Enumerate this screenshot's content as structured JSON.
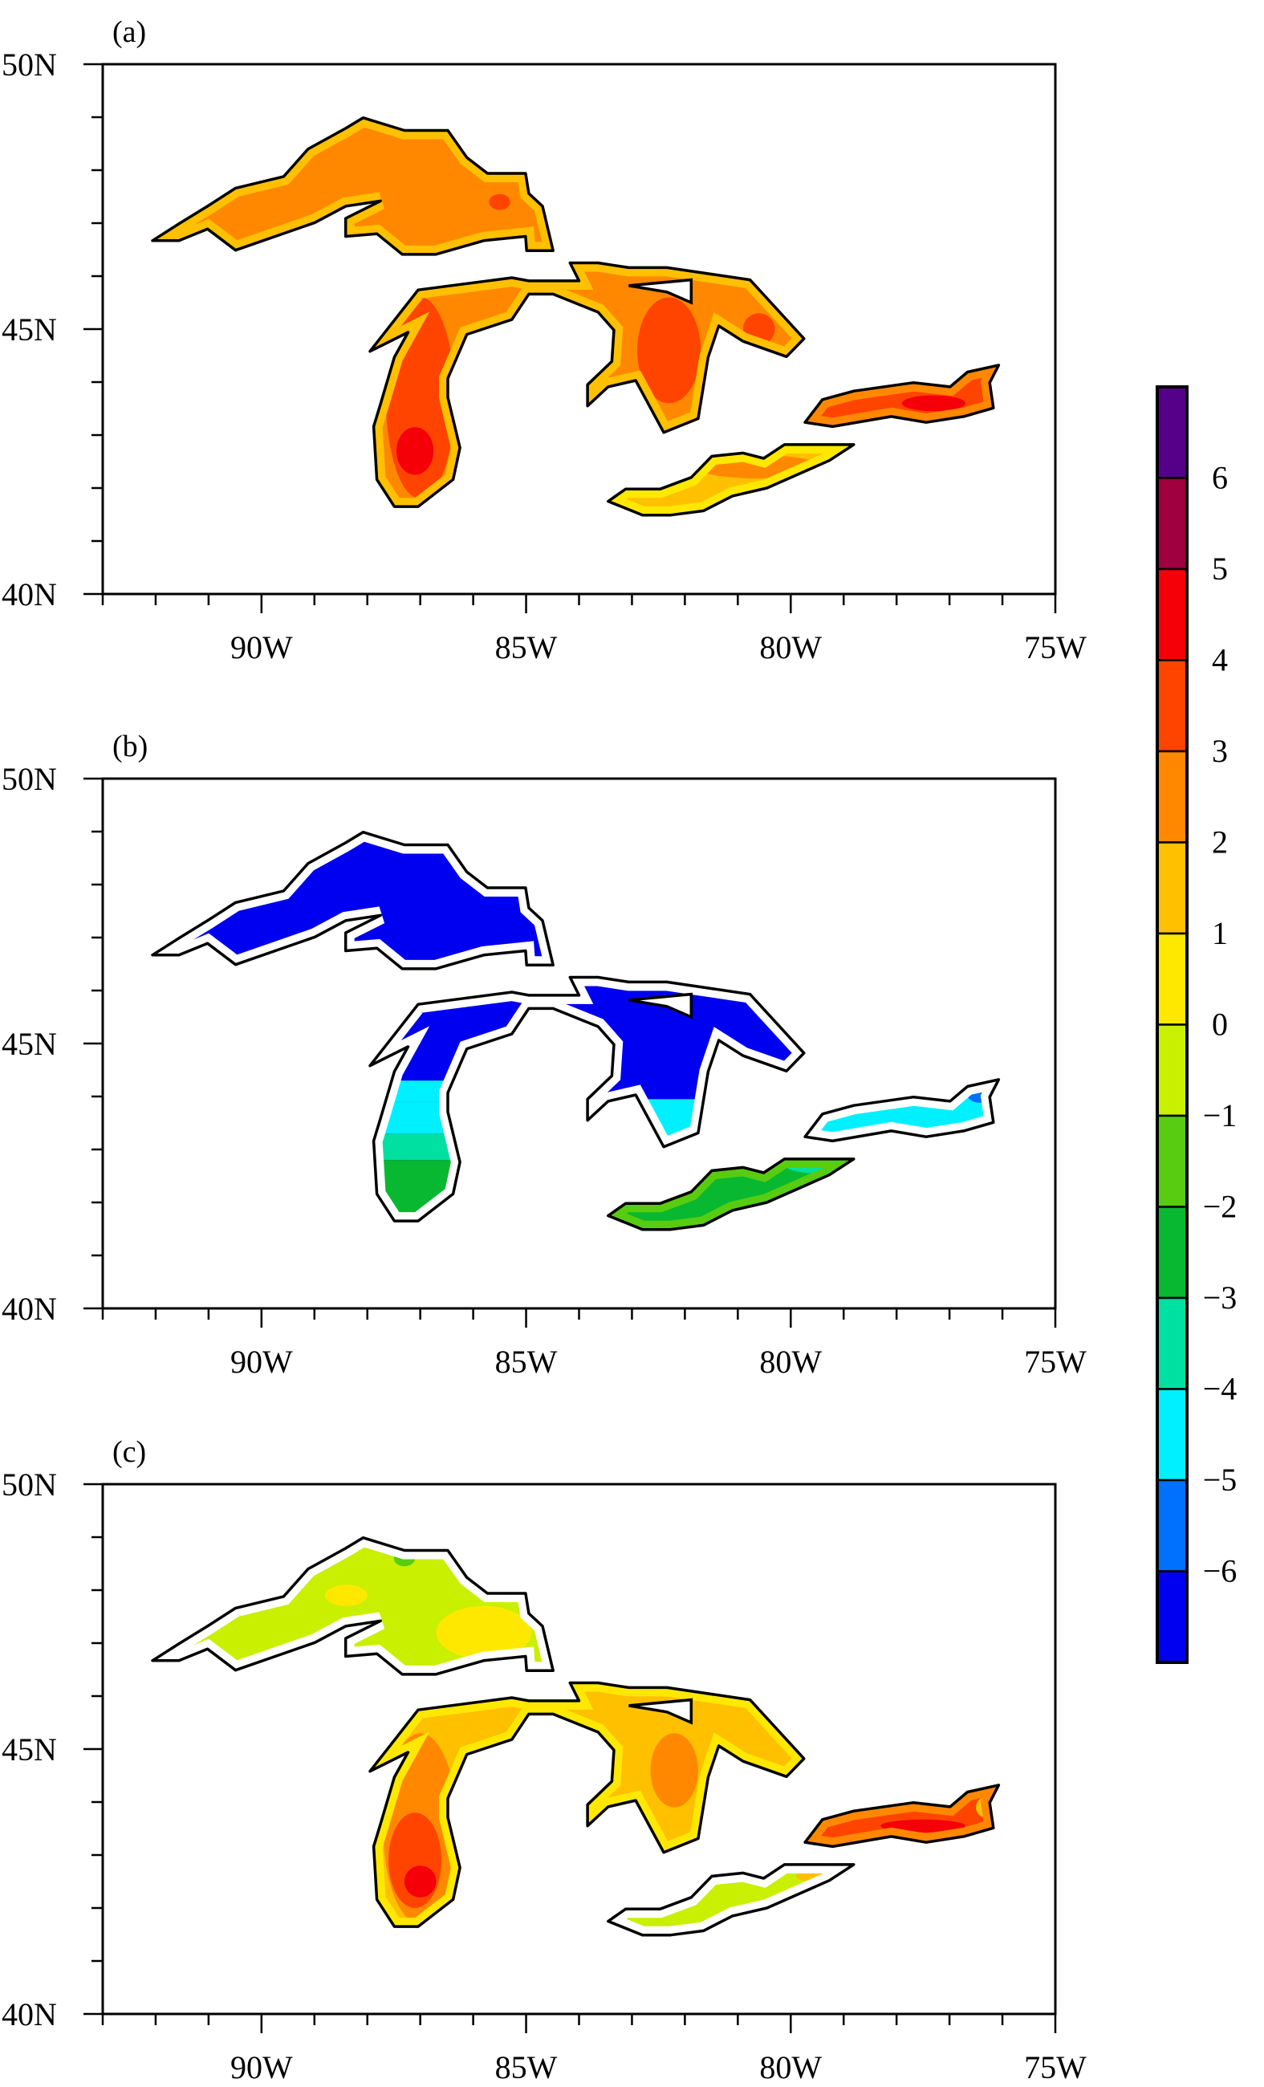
{
  "chart_data": {
    "type": "map",
    "panels": [
      {
        "label": "(a)"
      },
      {
        "label": "(b)"
      },
      {
        "label": "(c)"
      }
    ],
    "lon_range": [
      -93,
      -75
    ],
    "lat_range": [
      40,
      50
    ],
    "x_tick_labels": [
      {
        "lon": -90,
        "text": "90W"
      },
      {
        "lon": -85,
        "text": "85W"
      },
      {
        "lon": -80,
        "text": "80W"
      },
      {
        "lon": -75,
        "text": "75W"
      }
    ],
    "y_tick_labels": [
      {
        "lat": 50,
        "text": "50N"
      },
      {
        "lat": 45,
        "text": "45N"
      },
      {
        "lat": 40,
        "text": "40N"
      }
    ],
    "colorbar": {
      "levels": [
        "6",
        "5",
        "4",
        "3",
        "2",
        "1",
        "0",
        "−1",
        "−2",
        "−3",
        "−4",
        "−5",
        "−6"
      ],
      "colors": [
        "#550088",
        "#a00040",
        "#f50008",
        "#ff4400",
        "#ff8800",
        "#ffc000",
        "#ffe800",
        "#c8f000",
        "#58cc10",
        "#08b830",
        "#00e0a0",
        "#00f0ff",
        "#0070ff",
        "#0000f0"
      ]
    },
    "lakes": {
      "superior": [
        [
          -92.06,
          46.67
        ],
        [
          -91.56,
          46.67
        ],
        [
          -91.02,
          46.89
        ],
        [
          -90.49,
          46.49
        ],
        [
          -88.99,
          47.01
        ],
        [
          -88.41,
          47.32
        ],
        [
          -87.75,
          47.42
        ],
        [
          -88.41,
          47.09
        ],
        [
          -88.41,
          46.75
        ],
        [
          -87.82,
          46.8
        ],
        [
          -87.34,
          46.41
        ],
        [
          -86.71,
          46.41
        ],
        [
          -85.8,
          46.67
        ],
        [
          -85.01,
          46.75
        ],
        [
          -84.99,
          46.48
        ],
        [
          -84.49,
          46.48
        ],
        [
          -84.69,
          47.32
        ],
        [
          -84.95,
          47.56
        ],
        [
          -85.01,
          47.94
        ],
        [
          -85.73,
          47.94
        ],
        [
          -86.12,
          48.24
        ],
        [
          -86.48,
          48.75
        ],
        [
          -87.3,
          48.75
        ],
        [
          -88.08,
          48.99
        ],
        [
          -88.41,
          48.79
        ],
        [
          -89.12,
          48.4
        ],
        [
          -89.58,
          47.88
        ],
        [
          -90.49,
          47.66
        ],
        [
          -91.02,
          47.32
        ],
        [
          -91.56,
          46.99
        ]
      ],
      "michigan_huron": [
        [
          -87.95,
          44.58
        ],
        [
          -87.04,
          45.74
        ],
        [
          -85.27,
          45.97
        ],
        [
          -84.95,
          45.91
        ],
        [
          -84.0,
          45.91
        ],
        [
          -84.17,
          46.25
        ],
        [
          -83.64,
          46.25
        ],
        [
          -83.06,
          46.16
        ],
        [
          -82.34,
          46.16
        ],
        [
          -80.77,
          45.93
        ],
        [
          -79.75,
          44.82
        ],
        [
          -80.08,
          44.48
        ],
        [
          -80.9,
          44.77
        ],
        [
          -81.36,
          45.06
        ],
        [
          -81.56,
          44.47
        ],
        [
          -81.75,
          43.31
        ],
        [
          -82.4,
          43.05
        ],
        [
          -82.93,
          44.03
        ],
        [
          -83.45,
          43.91
        ],
        [
          -83.84,
          43.55
        ],
        [
          -83.84,
          43.95
        ],
        [
          -83.38,
          44.39
        ],
        [
          -83.34,
          44.98
        ],
        [
          -83.64,
          45.32
        ],
        [
          -84.49,
          45.66
        ],
        [
          -84.95,
          45.66
        ],
        [
          -85.27,
          45.18
        ],
        [
          -86.12,
          44.9
        ],
        [
          -86.48,
          44.07
        ],
        [
          -86.48,
          43.71
        ],
        [
          -86.25,
          42.76
        ],
        [
          -86.38,
          42.16
        ],
        [
          -87.04,
          41.65
        ],
        [
          -87.49,
          41.65
        ],
        [
          -87.82,
          42.16
        ],
        [
          -87.88,
          43.16
        ],
        [
          -87.75,
          43.59
        ],
        [
          -87.49,
          44.47
        ],
        [
          -87.23,
          44.94
        ]
      ],
      "manitoulin": [
        [
          -83.06,
          45.82
        ],
        [
          -81.88,
          45.93
        ],
        [
          -81.88,
          45.5
        ],
        [
          -82.34,
          45.7
        ]
      ],
      "erie": [
        [
          -83.45,
          41.75
        ],
        [
          -83.12,
          41.98
        ],
        [
          -82.47,
          41.98
        ],
        [
          -81.88,
          42.2
        ],
        [
          -81.49,
          42.6
        ],
        [
          -80.9,
          42.66
        ],
        [
          -80.51,
          42.56
        ],
        [
          -80.12,
          42.82
        ],
        [
          -78.81,
          42.82
        ],
        [
          -79.27,
          42.52
        ],
        [
          -80.45,
          42.0
        ],
        [
          -81.1,
          41.85
        ],
        [
          -81.65,
          41.57
        ],
        [
          -82.27,
          41.49
        ],
        [
          -82.8,
          41.49
        ]
      ],
      "ontario": [
        [
          -79.73,
          43.24
        ],
        [
          -79.4,
          43.67
        ],
        [
          -78.81,
          43.83
        ],
        [
          -77.68,
          43.99
        ],
        [
          -76.99,
          43.91
        ],
        [
          -76.66,
          44.19
        ],
        [
          -76.07,
          44.32
        ],
        [
          -76.24,
          43.99
        ],
        [
          -76.17,
          43.51
        ],
        [
          -76.73,
          43.35
        ],
        [
          -77.44,
          43.24
        ],
        [
          -78.1,
          43.35
        ],
        [
          -79.21,
          43.16
        ]
      ]
    }
  }
}
